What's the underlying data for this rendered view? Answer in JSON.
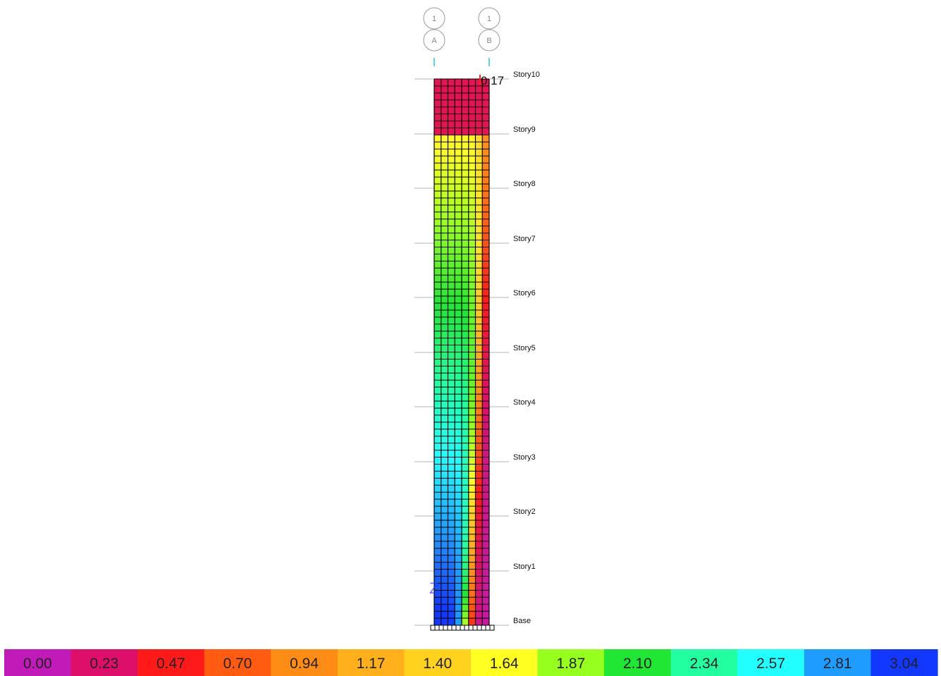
{
  "grid_bubbles": [
    {
      "top": "1",
      "bottom": "A"
    },
    {
      "top": "1",
      "bottom": "B"
    }
  ],
  "peak_value": "0.17",
  "stories": [
    "Story10",
    "Story9",
    "Story8",
    "Story7",
    "Story6",
    "Story5",
    "Story4",
    "Story3",
    "Story2",
    "Story1",
    "Base"
  ],
  "axis_glyph": "Z",
  "contour": {
    "min": 0.0,
    "max": 3.04,
    "profile_description": "level value shown by the colour map",
    "legend": [
      {
        "label": "0.00",
        "color": "#c21ab8"
      },
      {
        "label": "0.23",
        "color": "#dd0f6a"
      },
      {
        "label": "0.47",
        "color": "#ff1a1a"
      },
      {
        "label": "0.70",
        "color": "#ff5c12"
      },
      {
        "label": "0.94",
        "color": "#ff8c14"
      },
      {
        "label": "1.17",
        "color": "#ffb01a"
      },
      {
        "label": "1.40",
        "color": "#ffd21e"
      },
      {
        "label": "1.64",
        "color": "#ffff22"
      },
      {
        "label": "1.87",
        "color": "#96ff1e"
      },
      {
        "label": "2.10",
        "color": "#20e634"
      },
      {
        "label": "2.34",
        "color": "#22ffa0"
      },
      {
        "label": "2.57",
        "color": "#22ffff"
      },
      {
        "label": "2.81",
        "color": "#1e9cff"
      },
      {
        "label": "3.04",
        "color": "#1238ff"
      }
    ]
  },
  "colors": {
    "story_line": "#b5b5b5",
    "grid_line": "#000000",
    "bubble_stroke": "#9a9a9a",
    "gridline_tick": "#22c8e6"
  }
}
